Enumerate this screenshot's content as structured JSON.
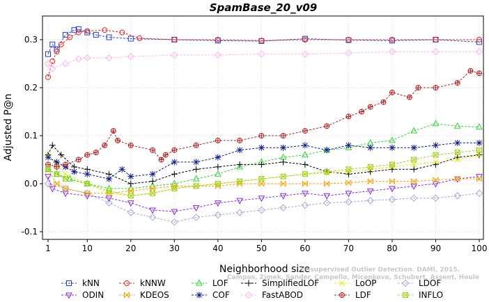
{
  "chart_data": {
    "type": "line",
    "title": "SpamBase_20_v09",
    "xlabel": "Neighborhood size",
    "ylabel": "Adjusted P@n",
    "xlim": [
      1,
      100
    ],
    "ylim": [
      -0.1,
      0.34
    ],
    "xticks": [
      "1",
      "10",
      "20",
      "30",
      "40",
      "50",
      "60",
      "70",
      "80",
      "90",
      "100"
    ],
    "yticks": [
      "-0.1",
      "0.0",
      "0.1",
      "0.2",
      "0.3"
    ],
    "grid": true,
    "legend_position": "bottom",
    "watermark_line1": "Unsupervised Outlier Detection. DAMI, 2015.",
    "watermark_line2": "Campos, Zimek, Sander, Campello, Micenkova, Schubert, Assent, Houle",
    "series": [
      {
        "name": "kNN",
        "color": "#1f3fd6",
        "marker": "square",
        "points": [
          [
            1,
            0.27
          ],
          [
            2,
            0.29
          ],
          [
            3,
            0.28
          ],
          [
            5,
            0.31
          ],
          [
            7,
            0.32
          ],
          [
            8,
            0.322
          ],
          [
            10,
            0.315
          ],
          [
            12,
            0.31
          ],
          [
            15,
            0.305
          ],
          [
            20,
            0.302
          ],
          [
            30,
            0.3
          ],
          [
            40,
            0.298
          ],
          [
            50,
            0.297
          ],
          [
            60,
            0.302
          ],
          [
            70,
            0.299
          ],
          [
            80,
            0.298
          ],
          [
            90,
            0.3
          ],
          [
            100,
            0.295
          ]
        ]
      },
      {
        "name": "kNNW",
        "color": "#e8231b",
        "marker": "circle",
        "points": [
          [
            1,
            0.222
          ],
          [
            2,
            0.255
          ],
          [
            3,
            0.275
          ],
          [
            4,
            0.29
          ],
          [
            6,
            0.305
          ],
          [
            8,
            0.315
          ],
          [
            10,
            0.318
          ],
          [
            14,
            0.32
          ],
          [
            18,
            0.315
          ],
          [
            22,
            0.303
          ],
          [
            30,
            0.3
          ],
          [
            40,
            0.3
          ],
          [
            50,
            0.298
          ],
          [
            60,
            0.3
          ],
          [
            70,
            0.3
          ],
          [
            80,
            0.3
          ],
          [
            90,
            0.3
          ],
          [
            100,
            0.3
          ]
        ]
      },
      {
        "name": "LOF",
        "color": "#2fd52f",
        "marker": "triangle-up",
        "points": [
          [
            1,
            0.03
          ],
          [
            3,
            0.02
          ],
          [
            6,
            0.01
          ],
          [
            10,
            0.0
          ],
          [
            15,
            -0.01
          ],
          [
            20,
            -0.01
          ],
          [
            25,
            -0.005
          ],
          [
            30,
            0.0
          ],
          [
            35,
            0.01
          ],
          [
            40,
            0.02
          ],
          [
            45,
            0.035
          ],
          [
            50,
            0.045
          ],
          [
            55,
            0.055
          ],
          [
            60,
            0.06
          ],
          [
            65,
            0.07
          ],
          [
            70,
            0.075
          ],
          [
            75,
            0.085
          ],
          [
            80,
            0.09
          ],
          [
            85,
            0.11
          ],
          [
            90,
            0.125
          ],
          [
            95,
            0.12
          ],
          [
            100,
            0.118
          ]
        ]
      },
      {
        "name": "SimplifiedLOF",
        "color": "#000000",
        "marker": "plus",
        "points": [
          [
            1,
            0.06
          ],
          [
            2,
            0.08
          ],
          [
            4,
            0.06
          ],
          [
            7,
            0.035
          ],
          [
            10,
            0.03
          ],
          [
            15,
            0.02
          ],
          [
            20,
            0.0
          ],
          [
            25,
            0.005
          ],
          [
            30,
            0.02
          ],
          [
            35,
            0.03
          ],
          [
            40,
            0.035
          ],
          [
            45,
            0.04
          ],
          [
            50,
            0.04
          ],
          [
            55,
            0.045
          ],
          [
            60,
            0.04
          ],
          [
            65,
            0.025
          ],
          [
            70,
            0.02
          ],
          [
            75,
            0.025
          ],
          [
            80,
            0.03
          ],
          [
            85,
            0.03
          ],
          [
            90,
            0.04
          ],
          [
            95,
            0.055
          ],
          [
            100,
            0.06
          ]
        ]
      },
      {
        "name": "LoOP",
        "color": "#e6e600",
        "marker": "x",
        "points": [
          [
            1,
            0.06
          ],
          [
            3,
            0.04
          ],
          [
            5,
            0.02
          ],
          [
            10,
            0.0
          ],
          [
            15,
            -0.02
          ],
          [
            20,
            -0.025
          ],
          [
            25,
            -0.02
          ],
          [
            30,
            -0.01
          ],
          [
            35,
            -0.005
          ],
          [
            40,
            0.0
          ],
          [
            45,
            0.005
          ],
          [
            50,
            0.01
          ],
          [
            55,
            0.015
          ],
          [
            60,
            0.02
          ],
          [
            65,
            0.022
          ],
          [
            70,
            0.025
          ],
          [
            75,
            0.03
          ],
          [
            80,
            0.035
          ],
          [
            85,
            0.04
          ],
          [
            90,
            0.045
          ],
          [
            95,
            0.05
          ],
          [
            100,
            0.06
          ]
        ]
      },
      {
        "name": "LDOF",
        "color": "#a8a8dc",
        "marker": "diamond",
        "points": [
          [
            1,
            0.0
          ],
          [
            5,
            -0.01
          ],
          [
            10,
            -0.02
          ],
          [
            15,
            -0.04
          ],
          [
            20,
            -0.06
          ],
          [
            25,
            -0.07
          ],
          [
            30,
            -0.08
          ],
          [
            35,
            -0.07
          ],
          [
            40,
            -0.065
          ],
          [
            45,
            -0.06
          ],
          [
            50,
            -0.055
          ],
          [
            55,
            -0.05
          ],
          [
            60,
            -0.045
          ],
          [
            65,
            -0.04
          ],
          [
            70,
            -0.038
          ],
          [
            75,
            -0.035
          ],
          [
            80,
            -0.033
          ],
          [
            85,
            -0.03
          ],
          [
            90,
            -0.03
          ],
          [
            95,
            -0.025
          ],
          [
            100,
            -0.02
          ]
        ]
      },
      {
        "name": "ODIN",
        "color": "#8a2be2",
        "marker": "triangle-down",
        "points": [
          [
            1,
            0.015
          ],
          [
            2,
            -0.01
          ],
          [
            5,
            -0.02
          ],
          [
            10,
            -0.025
          ],
          [
            15,
            -0.03
          ],
          [
            20,
            -0.04
          ],
          [
            25,
            -0.055
          ],
          [
            30,
            -0.058
          ],
          [
            35,
            -0.05
          ],
          [
            40,
            -0.04
          ],
          [
            45,
            -0.035
          ],
          [
            50,
            -0.03
          ],
          [
            55,
            -0.025
          ],
          [
            60,
            -0.02
          ],
          [
            65,
            -0.025
          ],
          [
            70,
            -0.02
          ],
          [
            75,
            -0.015
          ],
          [
            80,
            -0.01
          ],
          [
            85,
            -0.005
          ],
          [
            90,
            0.0
          ],
          [
            95,
            0.01
          ],
          [
            100,
            0.015
          ]
        ]
      },
      {
        "name": "KDEOS",
        "color": "#f5a300",
        "marker": "bowtie",
        "points": [
          [
            1,
            0.03
          ],
          [
            3,
            0.0
          ],
          [
            5,
            -0.01
          ],
          [
            10,
            -0.02
          ],
          [
            15,
            -0.02
          ],
          [
            20,
            -0.015
          ],
          [
            25,
            -0.01
          ],
          [
            30,
            -0.005
          ],
          [
            35,
            -0.005
          ],
          [
            40,
            -0.005
          ],
          [
            45,
            0.0
          ],
          [
            50,
            0.0
          ],
          [
            55,
            0.0
          ],
          [
            60,
            0.0
          ],
          [
            65,
            0.0
          ],
          [
            70,
            0.002
          ],
          [
            75,
            0.005
          ],
          [
            80,
            0.005
          ],
          [
            85,
            0.005
          ],
          [
            90,
            0.008
          ],
          [
            95,
            0.01
          ],
          [
            100,
            0.01
          ]
        ]
      },
      {
        "name": "COF",
        "color": "#0a1a8c",
        "marker": "asterisk",
        "points": [
          [
            1,
            0.055
          ],
          [
            3,
            0.045
          ],
          [
            5,
            0.035
          ],
          [
            7,
            0.025
          ],
          [
            10,
            0.02
          ],
          [
            15,
            0.01
          ],
          [
            18,
            0.03
          ],
          [
            20,
            0.015
          ],
          [
            25,
            0.02
          ],
          [
            30,
            0.045
          ],
          [
            35,
            0.045
          ],
          [
            40,
            0.055
          ],
          [
            45,
            0.07
          ],
          [
            50,
            0.075
          ],
          [
            55,
            0.075
          ],
          [
            60,
            0.08
          ],
          [
            65,
            0.07
          ],
          [
            70,
            0.08
          ],
          [
            75,
            0.075
          ],
          [
            80,
            0.075
          ],
          [
            85,
            0.075
          ],
          [
            90,
            0.08
          ],
          [
            95,
            0.085
          ],
          [
            100,
            0.085
          ]
        ]
      },
      {
        "name": "FastABOD",
        "color": "#ffb3f0",
        "marker": "diamond",
        "points": [
          [
            1,
            0.25
          ],
          [
            2,
            0.24
          ],
          [
            5,
            0.25
          ],
          [
            8,
            0.26
          ],
          [
            10,
            0.262
          ],
          [
            15,
            0.262
          ],
          [
            20,
            0.265
          ],
          [
            30,
            0.268
          ],
          [
            40,
            0.268
          ],
          [
            50,
            0.27
          ],
          [
            60,
            0.27
          ],
          [
            70,
            0.272
          ],
          [
            80,
            0.275
          ],
          [
            90,
            0.275
          ],
          [
            100,
            0.275
          ]
        ]
      },
      {
        "name": "LDF",
        "color": "#b22222",
        "marker": "circle-plus",
        "points": [
          [
            1,
            0.04
          ],
          [
            3,
            0.035
          ],
          [
            5,
            0.04
          ],
          [
            8,
            0.05
          ],
          [
            10,
            0.06
          ],
          [
            12,
            0.065
          ],
          [
            14,
            0.08
          ],
          [
            16,
            0.11
          ],
          [
            17,
            0.09
          ],
          [
            20,
            0.08
          ],
          [
            25,
            0.07
          ],
          [
            27,
            0.05
          ],
          [
            28,
            0.06
          ],
          [
            30,
            0.07
          ],
          [
            35,
            0.08
          ],
          [
            40,
            0.09
          ],
          [
            45,
            0.09
          ],
          [
            50,
            0.1
          ],
          [
            55,
            0.1
          ],
          [
            60,
            0.11
          ],
          [
            65,
            0.12
          ],
          [
            70,
            0.14
          ],
          [
            73,
            0.15
          ],
          [
            75,
            0.16
          ],
          [
            78,
            0.17
          ],
          [
            80,
            0.19
          ],
          [
            84,
            0.18
          ],
          [
            86,
            0.2
          ],
          [
            90,
            0.2
          ],
          [
            95,
            0.21
          ],
          [
            98,
            0.235
          ],
          [
            100,
            0.23
          ]
        ]
      },
      {
        "name": "INFLO",
        "color": "#9ed11a",
        "marker": "square-x",
        "points": [
          [
            1,
            0.03
          ],
          [
            3,
            0.02
          ],
          [
            5,
            0.01
          ],
          [
            10,
            0.0
          ],
          [
            15,
            -0.015
          ],
          [
            20,
            -0.025
          ],
          [
            25,
            -0.02
          ],
          [
            30,
            -0.01
          ],
          [
            35,
            -0.005
          ],
          [
            40,
            0.0
          ],
          [
            45,
            0.005
          ],
          [
            50,
            0.01
          ],
          [
            55,
            0.015
          ],
          [
            60,
            0.02
          ],
          [
            65,
            0.025
          ],
          [
            70,
            0.03
          ],
          [
            75,
            0.035
          ],
          [
            80,
            0.04
          ],
          [
            85,
            0.05
          ],
          [
            90,
            0.06
          ],
          [
            95,
            0.065
          ],
          [
            100,
            0.07
          ]
        ]
      }
    ]
  }
}
